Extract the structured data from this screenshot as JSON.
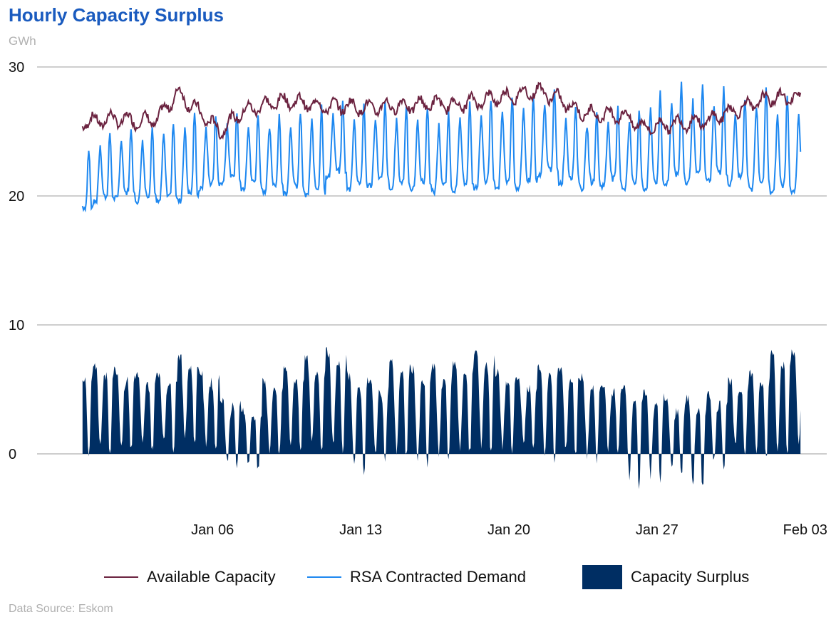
{
  "title": "Hourly Capacity Surplus",
  "unit": "GWh",
  "source": "Data Source: Eskom",
  "colors": {
    "available": "#6b2340",
    "demand": "#1e88f0",
    "surplus": "#002e63",
    "grid": "#bdbdbd",
    "title": "#1a5bbf"
  },
  "chart_data": {
    "type": "line",
    "title": "Hourly Capacity Surplus",
    "ylabel": "GWh",
    "xlabel": "",
    "ylim": [
      -3.5,
      30
    ],
    "yticks": [
      0,
      10,
      20,
      30
    ],
    "ytick_labels": [
      "0",
      "10",
      "20",
      "30"
    ],
    "x_range_days": [
      0,
      34.4
    ],
    "x_unit": "days since Dec 31 00:00 (hourly series, daily summary values)",
    "xticks": [
      6,
      13,
      20,
      27,
      34
    ],
    "xtick_labels": [
      "Jan 06",
      "Jan 13",
      "Jan 20",
      "Jan 27",
      "Feb 03"
    ],
    "grid": true,
    "legend_position": "bottom",
    "days": [
      1,
      2,
      3,
      4,
      5,
      6,
      7,
      8,
      9,
      10,
      11,
      12,
      13,
      14,
      15,
      16,
      17,
      18,
      19,
      20,
      21,
      22,
      23,
      24,
      25,
      26,
      27,
      28,
      29,
      30,
      31,
      32,
      33,
      34
    ],
    "series": [
      {
        "name": "Available Capacity",
        "kind": "line",
        "daily_level": [
          25.6,
          25.8,
          26.0,
          25.8,
          25.9,
          28.0,
          26.5,
          25.0,
          26.5,
          27.0,
          27.4,
          27.2,
          26.9,
          27.0,
          26.8,
          27.0,
          27.0,
          27.2,
          27.0,
          27.3,
          27.6,
          27.8,
          28.2,
          27.5,
          26.5,
          26.3,
          26.3,
          25.3,
          25.5,
          25.7,
          25.8,
          26.5,
          27.0,
          27.6
        ]
      },
      {
        "name": "RSA Contracted Demand",
        "kind": "line",
        "daily_peak": [
          23.5,
          24.9,
          25.3,
          25.3,
          25.8,
          26.5,
          26.3,
          26.5,
          26.4,
          26.3,
          26.5,
          27.0,
          27.3,
          27.0,
          27.2,
          27.0,
          27.0,
          26.5,
          27.2,
          27.6,
          27.8,
          27.8,
          28.2,
          27.0,
          26.5,
          26.8,
          26.8,
          28.0,
          28.7,
          28.6,
          28.3,
          27.5,
          28.3,
          27.7
        ],
        "daily_trough": [
          18.7,
          19.5,
          19.8,
          19.6,
          19.5,
          19.6,
          20.5,
          21.0,
          20.6,
          20.4,
          20.2,
          20.0,
          21.4,
          20.5,
          20.8,
          20.5,
          20.5,
          20.3,
          20.5,
          20.6,
          20.5,
          20.6,
          21.5,
          21.0,
          20.6,
          20.8,
          20.6,
          20.5,
          21.0,
          21.0,
          21.2,
          20.9,
          20.5,
          20.2
        ]
      },
      {
        "name": "Capacity Surplus",
        "kind": "area",
        "note": "Available Capacity minus RSA Contracted Demand",
        "daily_max": [
          6.7,
          6.9,
          6.5,
          6.1,
          6.3,
          7.6,
          6.3,
          4.3,
          3.5,
          5.5,
          6.6,
          7.3,
          7.9,
          6.1,
          5.6,
          7.1,
          6.6,
          6.7,
          7.0,
          7.9,
          6.3,
          5.8,
          6.9,
          6.7,
          5.9,
          5.5,
          5.0,
          4.9,
          4.0,
          4.3,
          4.6,
          5.7,
          6.3,
          8.0
        ],
        "daily_min": [
          0.1,
          0.2,
          0.3,
          0.3,
          0.5,
          1.0,
          0.5,
          -1.0,
          -1.1,
          0.0,
          0.4,
          0.3,
          0.2,
          -1.3,
          -0.3,
          -0.2,
          -1.0,
          -0.3,
          0.1,
          0.3,
          0.2,
          0.3,
          -0.4,
          -0.2,
          -0.5,
          0.1,
          -2.4,
          -2.1,
          -1.5,
          -2.8,
          -0.9,
          0.2,
          -0.2,
          0.0
        ]
      }
    ]
  },
  "legend": {
    "available": "Available Capacity",
    "demand": "RSA Contracted Demand",
    "surplus": "Capacity Surplus"
  }
}
